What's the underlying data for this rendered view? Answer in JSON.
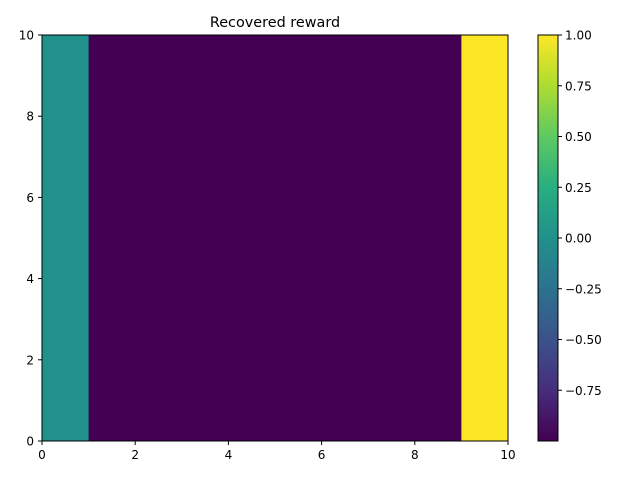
{
  "chart_data": {
    "type": "heatmap",
    "title": "Recovered reward",
    "xlabel": "",
    "ylabel": "",
    "xlim": [
      0,
      10
    ],
    "ylim": [
      0,
      10
    ],
    "x_ticks": [
      "0",
      "2",
      "4",
      "6",
      "8",
      "10"
    ],
    "y_ticks": [
      "0",
      "2",
      "4",
      "6",
      "8",
      "10"
    ],
    "x_edges": [
      0,
      1,
      2,
      3,
      4,
      5,
      6,
      7,
      8,
      9,
      10
    ],
    "values": [
      0,
      -1,
      -1,
      -1,
      -1,
      -1,
      -1,
      -1,
      -1,
      1
    ],
    "colormap": "viridis",
    "color_range": [
      -1,
      1
    ],
    "colorbar_ticks": [
      "1.00",
      "0.75",
      "0.50",
      "0.25",
      "0.00",
      "−0.25",
      "−0.50",
      "−0.75"
    ],
    "colorbar_tick_values": [
      1.0,
      0.75,
      0.5,
      0.25,
      0.0,
      -0.25,
      -0.5,
      -0.75
    ],
    "grid": false
  }
}
